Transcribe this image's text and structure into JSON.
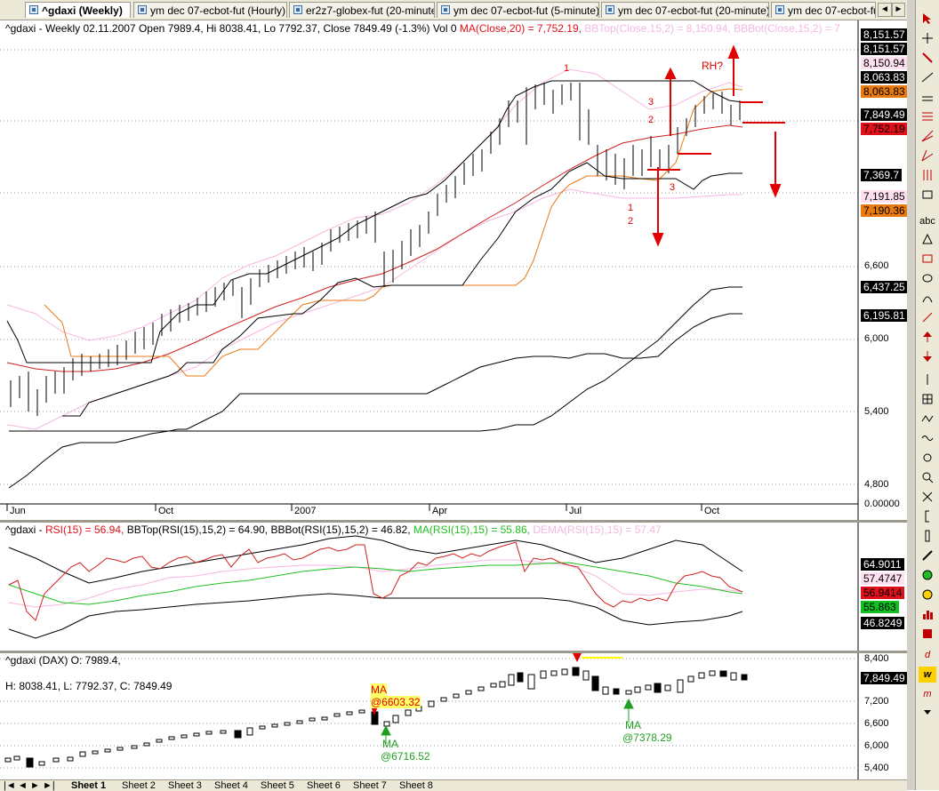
{
  "tabs": [
    {
      "label": "^gdaxi (Weekly)",
      "active": true
    },
    {
      "label": "ym   dec 07-ecbot-fut (Hourly)",
      "active": false
    },
    {
      "label": "er2z7-globex-fut (20-minute)",
      "active": false
    },
    {
      "label": "ym   dec 07-ecbot-fut (5-minute)",
      "active": false
    },
    {
      "label": "ym   dec 07-ecbot-fut (20-minute)",
      "active": false
    },
    {
      "label": "ym   dec 07-ecbot-fu",
      "active": false
    }
  ],
  "tab_nav": {
    "left": "◄",
    "right": "►",
    "close": "×"
  },
  "price_pane": {
    "title": "^gdaxi - Weekly 02.11.2007 Open 7989.4, Hi 8038.41, Lo 7792.37, Close 7849.49 (-1.3%) Vol 0",
    "ma_text": "MA(Close,20) = 7,752.19,",
    "bbtop_text": "BBTop(Close,15,2) = 8,150.94,",
    "bbbot_text": "BBBot(Close,15,2) = 7",
    "axis_labels": [
      "6,600",
      "6,000",
      "5,400",
      "4,800",
      "0.00000"
    ],
    "price_boxes": [
      {
        "text": "8,151.57",
        "bg": "#000000",
        "fg": "#ffffff"
      },
      {
        "text": "8,151.57",
        "bg": "#000000",
        "fg": "#ffffff"
      },
      {
        "text": "8,150.94",
        "bg": "#ffe0f0",
        "fg": "#000000"
      },
      {
        "text": "8,063.83",
        "bg": "#000000",
        "fg": "#ffffff"
      },
      {
        "text": "8,063.83",
        "bg": "#e87a10",
        "fg": "#000000"
      },
      {
        "text": "7,849.49",
        "bg": "#000000",
        "fg": "#ffffff"
      },
      {
        "text": "7,752.19",
        "bg": "#e0101a",
        "fg": "#000000"
      },
      {
        "text": "7,369.7",
        "bg": "#000000",
        "fg": "#ffffff"
      },
      {
        "text": "7,191.85",
        "bg": "#ffe0f0",
        "fg": "#000000"
      },
      {
        "text": "7,190.36",
        "bg": "#e87a10",
        "fg": "#000000"
      },
      {
        "text": "6,437.25",
        "bg": "#000000",
        "fg": "#ffffff"
      },
      {
        "text": "6,195.81",
        "bg": "#000000",
        "fg": "#ffffff"
      }
    ],
    "dates": [
      "Jun",
      "Oct",
      "2007",
      "Apr",
      "Jul",
      "Oct"
    ],
    "annotations": {
      "rh": "RH?",
      "n1_top": "1",
      "n3": "3",
      "n2": "2",
      "n3b": "3",
      "n1b": "1",
      "n2b": "2"
    }
  },
  "rsi_pane": {
    "title_prefix": "^gdaxi - ",
    "rsi": "RSI(15) = 56.94,",
    "bbtop": "BBTop(RSI(15),15,2) = 64.90,",
    "bbbot": "BBBot(RSI(15),15,2) = 46.82,",
    "ma": "MA(RSI(15),15) = 55.86,",
    "dema": "DEMA(RSI(15),15) = 57.47",
    "boxes": [
      {
        "text": "64.9011",
        "bg": "#000000",
        "fg": "#ffffff"
      },
      {
        "text": "57.4747",
        "bg": "#ffe0f0",
        "fg": "#000000"
      },
      {
        "text": "56.9414",
        "bg": "#e0101a",
        "fg": "#000000"
      },
      {
        "text": "55.863",
        "bg": "#10c020",
        "fg": "#000000"
      },
      {
        "text": "46.8249",
        "bg": "#000000",
        "fg": "#ffffff"
      }
    ]
  },
  "dax_pane": {
    "title": "^gdaxi (DAX) O: 7989.4, ",
    "hlc": "H: 8038.41, L: 7792.37, C: 7849.49",
    "axis_labels": [
      "8,400",
      "7,200",
      "6,600",
      "6,000",
      "5,400"
    ],
    "price_box": {
      "text": "7,849.49"
    },
    "ma_label1": "MA",
    "ma_label1_price": "@6603.32",
    "ma_label2": "MA",
    "ma_label2_price": "@6716.52",
    "ma_label3": "MA",
    "ma_label3_price": "@7378.29"
  },
  "sheets": [
    "Sheet 1",
    "Sheet 2",
    "Sheet 3",
    "Sheet 4",
    "Sheet 5",
    "Sheet 6",
    "Sheet 7",
    "Sheet 8"
  ],
  "sheet_nav": [
    "|◄",
    "◄",
    "►",
    "►|"
  ],
  "toolbar_icons": [
    "arrow-cursor-icon",
    "crosshair-icon",
    "text-icon",
    "abc-text-icon",
    "triangle-icon",
    "line-icon",
    "trendline-icon",
    "fibonacci-icon",
    "rectangle-icon",
    "ellipse-icon",
    "arrow-up-icon",
    "arrow-down-icon",
    "letter-d-icon",
    "letter-w-icon",
    "letter-m-icon"
  ],
  "toolbar_text": {
    "abc": "abc",
    "d": "d",
    "w": "w",
    "m": "m"
  }
}
